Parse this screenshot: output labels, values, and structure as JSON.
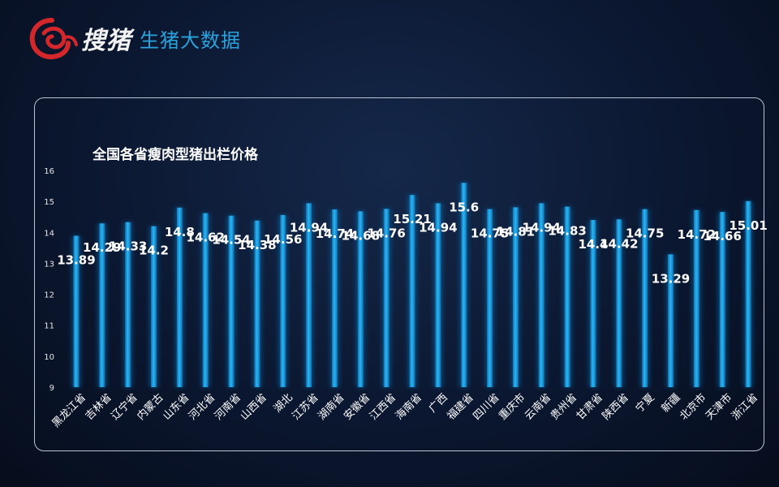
{
  "brand": {
    "name": "搜猪",
    "subtitle": "生猪大数据"
  },
  "colors": {
    "bar": "#1b9ee4",
    "bar_glow": "#0a6fb0",
    "logo_red": "#d4272b",
    "accent": "#2aa3dc"
  },
  "chart_data": {
    "type": "bar",
    "title": "全国各省瘦肉型猪出栏价格",
    "xlabel": "",
    "ylabel": "",
    "ylim": [
      9,
      16
    ],
    "yticks": [
      9,
      10,
      11,
      12,
      13,
      14,
      15,
      16
    ],
    "grid": false,
    "categories": [
      "黑龙江省",
      "吉林省",
      "辽宁省",
      "内蒙古",
      "山东省",
      "河北省",
      "河南省",
      "山西省",
      "湖北",
      "江苏省",
      "湖南省",
      "安徽省",
      "江西省",
      "海南省",
      "广西",
      "福建省",
      "四川省",
      "重庆市",
      "云南省",
      "贵州省",
      "甘肃省",
      "陕西省",
      "宁夏",
      "新疆",
      "北京市",
      "天津市",
      "浙江省"
    ],
    "values": [
      13.89,
      14.29,
      14.33,
      14.2,
      14.8,
      14.62,
      14.54,
      14.38,
      14.56,
      14.94,
      14.74,
      14.68,
      14.76,
      15.21,
      14.94,
      15.6,
      14.75,
      14.81,
      14.94,
      14.83,
      14.4,
      14.42,
      14.75,
      13.29,
      14.72,
      14.66,
      15.01
    ]
  }
}
